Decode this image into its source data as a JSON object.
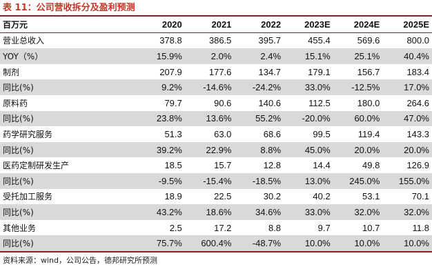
{
  "caption": "表 11：公司营收拆分及盈利预测",
  "header": [
    "百万元",
    "2020",
    "2021",
    "2022",
    "2023E",
    "2024E",
    "2025E"
  ],
  "rows": [
    [
      "营业总收入",
      "378.8",
      "386.5",
      "395.7",
      "455.4",
      "569.6",
      "800.0"
    ],
    [
      "YOY（%）",
      "15.9%",
      "2.0%",
      "2.4%",
      "15.1%",
      "25.1%",
      "40.4%"
    ],
    [
      "制剂",
      "207.9",
      "177.6",
      "134.7",
      "179.1",
      "156.7",
      "183.4"
    ],
    [
      "同比(%)",
      "9.2%",
      "-14.6%",
      "-24.2%",
      "33.0%",
      "-12.5%",
      "17.0%"
    ],
    [
      "原料药",
      "79.7",
      "90.6",
      "140.6",
      "112.5",
      "180.0",
      "264.6"
    ],
    [
      "同比(%)",
      "23.8%",
      "13.6%",
      "55.2%",
      "-20.0%",
      "60.0%",
      "47.0%"
    ],
    [
      "药学研究服务",
      "51.3",
      "63.0",
      "68.6",
      "99.5",
      "119.4",
      "143.3"
    ],
    [
      "同比(%)",
      "39.2%",
      "22.9%",
      "8.8%",
      "45.0%",
      "20.0%",
      "20.0%"
    ],
    [
      "医药定制研发生产",
      "18.5",
      "15.7",
      "12.8",
      "14.4",
      "49.8",
      "126.9"
    ],
    [
      "同比(%)",
      "-9.5%",
      "-15.4%",
      "-18.5%",
      "13.0%",
      "245.0%",
      "155.0%"
    ],
    [
      "受托加工服务",
      "18.9",
      "22.5",
      "30.2",
      "40.2",
      "53.1",
      "70.1"
    ],
    [
      "同比(%)",
      "43.2%",
      "18.6%",
      "34.6%",
      "33.0%",
      "32.0%",
      "32.0%"
    ],
    [
      "其他业务",
      "2.5",
      "17.2",
      "8.8",
      "9.7",
      "10.7",
      "11.8"
    ],
    [
      "同比(%)",
      "75.7%",
      "600.4%",
      "-48.7%",
      "10.0%",
      "10.0%",
      "10.0%"
    ]
  ],
  "source": "资料来源：wind，公司公告，德邦研究所预测"
}
